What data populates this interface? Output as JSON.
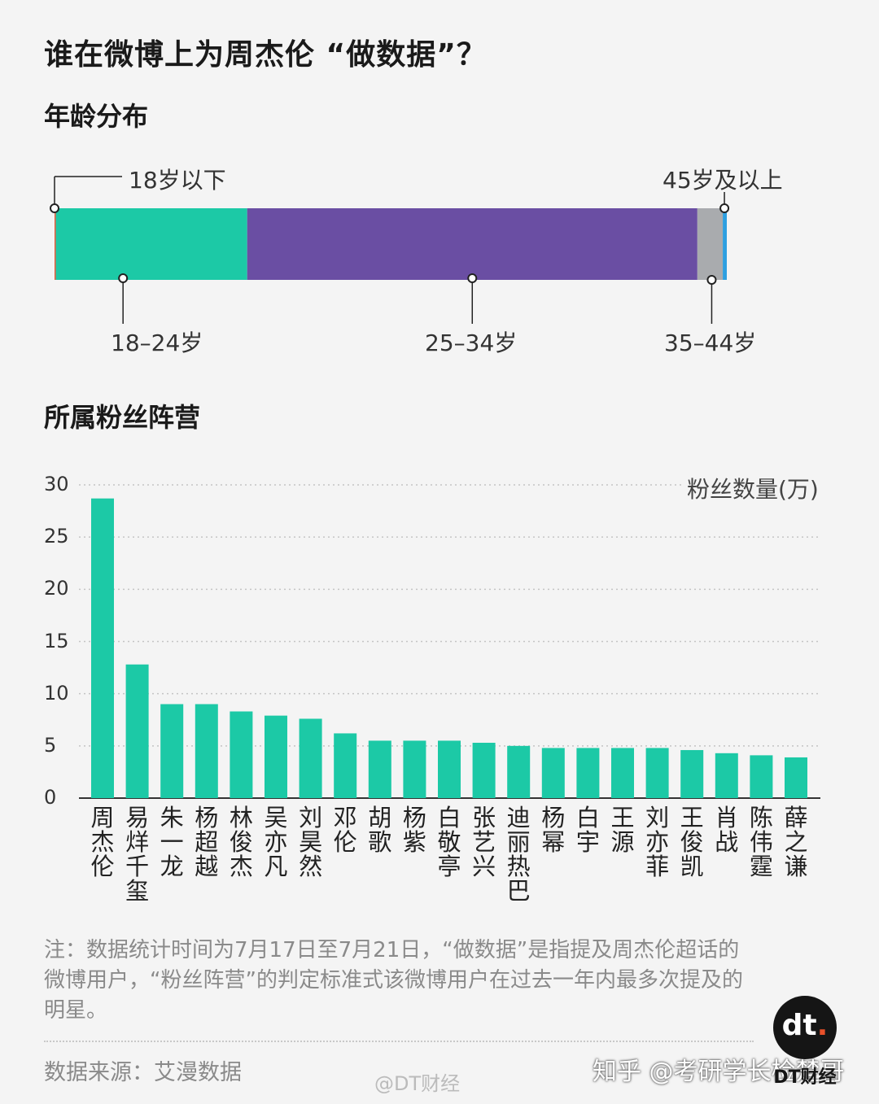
{
  "title": "谁在微博上为周杰伦 “做数据”？",
  "age_section": {
    "title": "年龄分布",
    "labels": {
      "under18": "18岁以下",
      "age18_24": "18–24岁",
      "age25_34": "25–34岁",
      "age35_44": "35–44岁",
      "over45": "45岁及以上"
    }
  },
  "fans_section": {
    "title": "所属粉丝阵营",
    "ylabel": "粉丝数量(万)"
  },
  "note": "注：数据统计时间为7月17日至7月21日，“做数据”是指提及周杰伦超话的微博用户，“粉丝阵营”的判定标准式该微博用户在过去一年内最多次提及的明星。",
  "source": "数据来源：艾漫数据",
  "watermarks": {
    "weibo": "@DT财经",
    "zhihu": "知乎 @考研学长检楚哥",
    "logo": "dt",
    "logo_sub": "DT财经"
  },
  "colors": {
    "teal": "#1cc9a6",
    "purple": "#6a4ea3",
    "gray": "#a9abae",
    "blue": "#2e9fe0",
    "red": "#e05a3a"
  },
  "chart_data": [
    {
      "type": "bar",
      "orientation": "horizontal-stacked",
      "title": "年龄分布",
      "categories": [
        "18岁以下",
        "18–24岁",
        "25–34岁",
        "35–44岁",
        "45岁及以上"
      ],
      "values": [
        0.2,
        28.6,
        67.3,
        3.8,
        0.6
      ],
      "unit": "%",
      "colors": [
        "#e05a3a",
        "#1cc9a6",
        "#6a4ea3",
        "#a9abae",
        "#2e9fe0"
      ]
    },
    {
      "type": "bar",
      "title": "所属粉丝阵营",
      "ylabel": "粉丝数量(万)",
      "ylim": [
        0,
        30
      ],
      "yticks": [
        0,
        5,
        10,
        15,
        20,
        25,
        30
      ],
      "grid": true,
      "categories": [
        "周杰伦",
        "易烊千玺",
        "朱一龙",
        "杨超越",
        "林俊杰",
        "吴亦凡",
        "刘昊然",
        "邓伦",
        "胡歌",
        "杨紫",
        "白敬亭",
        "张艺兴",
        "迪丽热巴",
        "杨幂",
        "白宇",
        "王源",
        "刘亦菲",
        "王俊凯",
        "肖战",
        "陈伟霆",
        "薛之谦"
      ],
      "values": [
        28.7,
        12.8,
        9.0,
        9.0,
        8.3,
        7.9,
        7.6,
        6.2,
        5.5,
        5.5,
        5.5,
        5.3,
        5.0,
        4.8,
        4.8,
        4.8,
        4.8,
        4.6,
        4.3,
        4.1,
        3.9
      ],
      "color": "#1cc9a6"
    }
  ]
}
